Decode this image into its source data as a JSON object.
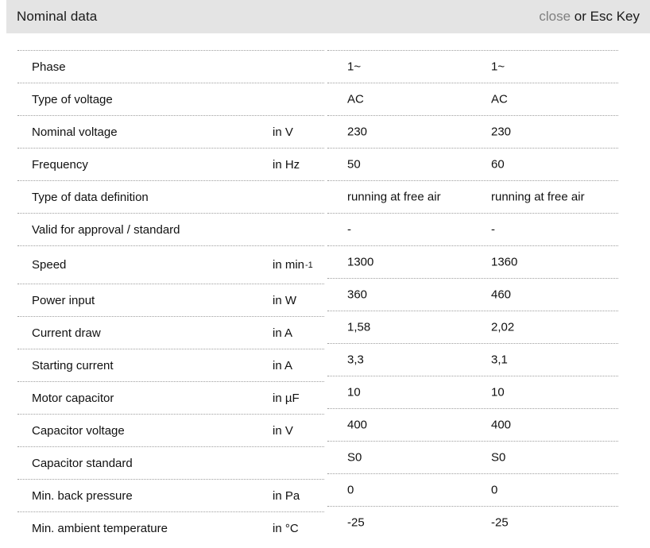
{
  "header": {
    "title": "Nominal data",
    "close_label": "close",
    "close_suffix": " or Esc Key"
  },
  "table": {
    "rows": [
      {
        "label": "Phase",
        "unit": "",
        "values": [
          "1~",
          "1~"
        ]
      },
      {
        "label": "Type of voltage",
        "unit": "",
        "values": [
          "AC",
          "AC"
        ]
      },
      {
        "label": "Nominal voltage",
        "unit": "in V",
        "values": [
          "230",
          "230"
        ]
      },
      {
        "label": "Frequency",
        "unit": "in Hz",
        "values": [
          "50",
          "60"
        ]
      },
      {
        "label": "Type of data definition",
        "unit": "",
        "values": [
          "running at free air",
          "running at free air"
        ]
      },
      {
        "label": "Valid for approval / standard",
        "unit": "",
        "values": [
          "-",
          "-"
        ]
      },
      {
        "label": "Speed",
        "unit": "in min",
        "unit_sup": "-1",
        "values": [
          "1300",
          "1360"
        ]
      },
      {
        "label": "Power input",
        "unit": "in W",
        "values": [
          "360",
          "460"
        ]
      },
      {
        "label": "Current draw",
        "unit": "in A",
        "values": [
          "1,58",
          "2,02"
        ]
      },
      {
        "label": "Starting current",
        "unit": "in A",
        "values": [
          "3,3",
          "3,1"
        ]
      },
      {
        "label": "Motor capacitor",
        "unit": "in µF",
        "values": [
          "10",
          "10"
        ]
      },
      {
        "label": "Capacitor voltage",
        "unit": "in V",
        "values": [
          "400",
          "400"
        ]
      },
      {
        "label": "Capacitor standard",
        "unit": "",
        "values": [
          "S0",
          "S0"
        ]
      },
      {
        "label": "Min. back pressure",
        "unit": "in Pa",
        "values": [
          "0",
          "0"
        ]
      },
      {
        "label": "Min. ambient temperature",
        "unit": "in °C",
        "values": [
          "-25",
          "-25"
        ]
      }
    ]
  },
  "colors": {
    "header_background": "#e4e4e4",
    "close_link": "#7f7f7f",
    "text": "#111111",
    "divider": "#9e9e9e"
  }
}
